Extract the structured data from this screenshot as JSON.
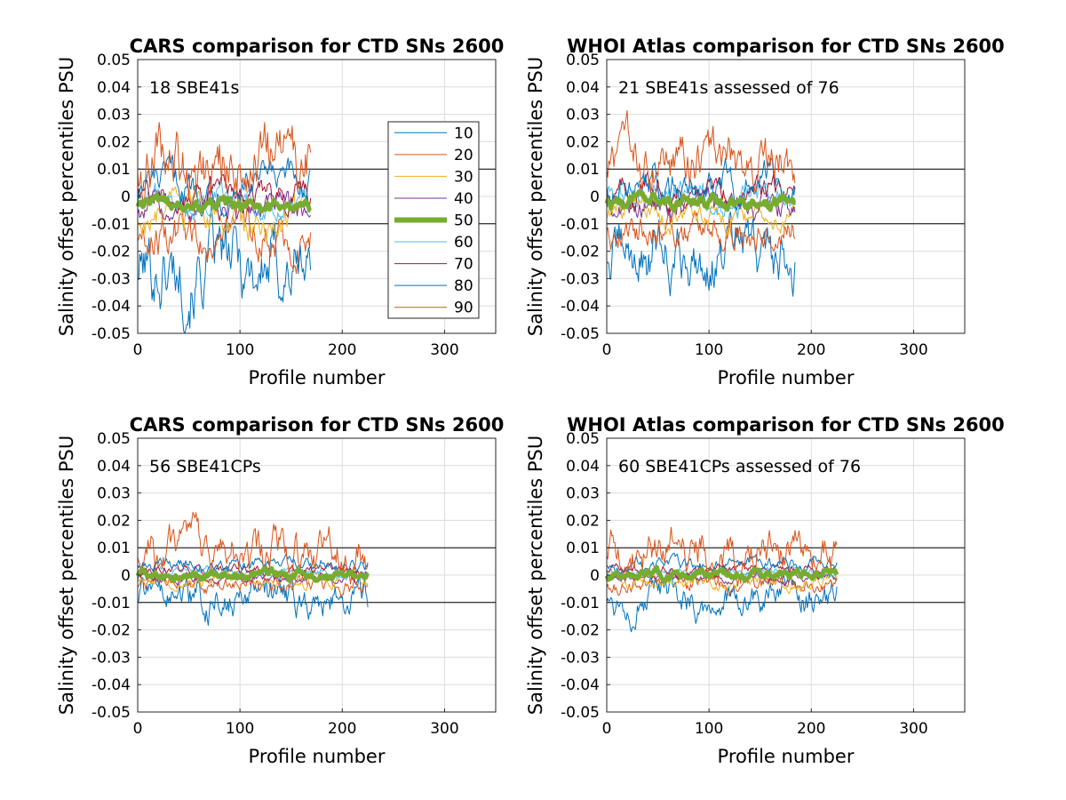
{
  "chart_data": [
    {
      "type": "line",
      "title": "CARS comparison for CTD SNs 2600",
      "xlabel": "Profile number",
      "ylabel": "Salinity offset percentiles PSU",
      "annotation": "18 SBE41s",
      "xlim": [
        0,
        350
      ],
      "ylim": [
        -0.05,
        0.05
      ],
      "xticks": [
        "0",
        "100",
        "200",
        "300"
      ],
      "yticks": [
        "-0.05",
        "-0.04",
        "-0.03",
        "-0.02",
        "-0.01",
        "0",
        "0.01",
        "0.02",
        "0.03",
        "0.04",
        "0.05"
      ],
      "reference_lines": [
        0.01,
        -0.01
      ],
      "grid": true,
      "legend": {
        "placement": "top-right",
        "entries": [
          "10",
          "20",
          "30",
          "40",
          "50",
          "60",
          "70",
          "80",
          "90"
        ]
      },
      "n_profiles": 170,
      "series": [
        {
          "name": "10",
          "color": "#0072BD",
          "level": -0.026,
          "noise": 0.009,
          "seed": 101
        },
        {
          "name": "20",
          "color": "#D95319",
          "level": -0.014,
          "noise": 0.005,
          "seed": 102
        },
        {
          "name": "30",
          "color": "#EDB120",
          "level": -0.009,
          "noise": 0.004,
          "seed": 103
        },
        {
          "name": "40",
          "color": "#7E2F8E",
          "level": -0.005,
          "noise": 0.003,
          "seed": 104
        },
        {
          "name": "50",
          "color": "#77AC30",
          "level": -0.003,
          "noise": 0.0015,
          "seed": 105
        },
        {
          "name": "60",
          "color": "#4DBEEE",
          "level": -0.001,
          "noise": 0.003,
          "seed": 106
        },
        {
          "name": "70",
          "color": "#A2142F",
          "level": 0.001,
          "noise": 0.003,
          "seed": 107
        },
        {
          "name": "80",
          "color": "#0072BD",
          "level": 0.004,
          "noise": 0.004,
          "seed": 108
        },
        {
          "name": "90",
          "color": "#D95319",
          "level": 0.012,
          "noise": 0.008,
          "seed": 109
        }
      ]
    },
    {
      "type": "line",
      "title": "WHOI Atlas comparison for CTD SNs 2600",
      "xlabel": "Profile number",
      "ylabel": "Salinity offset percentiles PSU",
      "annotation": "21 SBE41s assessed of 76",
      "xlim": [
        0,
        350
      ],
      "ylim": [
        -0.05,
        0.05
      ],
      "xticks": [
        "0",
        "100",
        "200",
        "300"
      ],
      "yticks": [
        "-0.05",
        "-0.04",
        "-0.03",
        "-0.02",
        "-0.01",
        "0",
        "0.01",
        "0.02",
        "0.03",
        "0.04",
        "0.05"
      ],
      "reference_lines": [
        0.01,
        -0.01
      ],
      "grid": true,
      "n_profiles": 185,
      "series": [
        {
          "name": "10",
          "color": "#0072BD",
          "level": -0.022,
          "noise": 0.007,
          "seed": 201
        },
        {
          "name": "20",
          "color": "#D95319",
          "level": -0.011,
          "noise": 0.004,
          "seed": 202
        },
        {
          "name": "30",
          "color": "#EDB120",
          "level": -0.007,
          "noise": 0.003,
          "seed": 203
        },
        {
          "name": "40",
          "color": "#7E2F8E",
          "level": -0.003,
          "noise": 0.003,
          "seed": 204
        },
        {
          "name": "50",
          "color": "#77AC30",
          "level": -0.002,
          "noise": 0.0015,
          "seed": 205
        },
        {
          "name": "60",
          "color": "#4DBEEE",
          "level": 0.0,
          "noise": 0.003,
          "seed": 206
        },
        {
          "name": "70",
          "color": "#A2142F",
          "level": 0.002,
          "noise": 0.003,
          "seed": 207
        },
        {
          "name": "80",
          "color": "#0072BD",
          "level": 0.005,
          "noise": 0.004,
          "seed": 208
        },
        {
          "name": "90",
          "color": "#D95319",
          "level": 0.012,
          "noise": 0.006,
          "seed": 209
        }
      ]
    },
    {
      "type": "line",
      "title": "CARS comparison for CTD SNs 2600",
      "xlabel": "Profile number",
      "ylabel": "Salinity offset percentiles PSU",
      "annotation": "56 SBE41CPs",
      "xlim": [
        0,
        350
      ],
      "ylim": [
        -0.05,
        0.05
      ],
      "xticks": [
        "0",
        "100",
        "200",
        "300"
      ],
      "yticks": [
        "-0.05",
        "-0.04",
        "-0.03",
        "-0.02",
        "-0.01",
        "0",
        "0.01",
        "0.02",
        "0.03",
        "0.04",
        "0.05"
      ],
      "reference_lines": [
        0.01,
        -0.01
      ],
      "grid": true,
      "n_profiles": 226,
      "series": [
        {
          "name": "10",
          "color": "#0072BD",
          "level": -0.009,
          "noise": 0.004,
          "seed": 301
        },
        {
          "name": "20",
          "color": "#D95319",
          "level": -0.004,
          "noise": 0.002,
          "seed": 302
        },
        {
          "name": "30",
          "color": "#EDB120",
          "level": -0.002,
          "noise": 0.0015,
          "seed": 303
        },
        {
          "name": "40",
          "color": "#7E2F8E",
          "level": -0.001,
          "noise": 0.001,
          "seed": 304
        },
        {
          "name": "50",
          "color": "#77AC30",
          "level": 0.0,
          "noise": 0.001,
          "seed": 305
        },
        {
          "name": "60",
          "color": "#4DBEEE",
          "level": 0.001,
          "noise": 0.001,
          "seed": 306
        },
        {
          "name": "70",
          "color": "#A2142F",
          "level": 0.002,
          "noise": 0.0012,
          "seed": 307
        },
        {
          "name": "80",
          "color": "#0072BD",
          "level": 0.004,
          "noise": 0.0015,
          "seed": 308
        },
        {
          "name": "90",
          "color": "#D95319",
          "level": 0.008,
          "noise": 0.005,
          "seed": 309
        }
      ]
    },
    {
      "type": "line",
      "title": "WHOI Atlas comparison for CTD SNs 2600",
      "xlabel": "Profile number",
      "ylabel": "Salinity offset percentiles PSU",
      "annotation": "60 SBE41CPs assessed of 76",
      "xlim": [
        0,
        350
      ],
      "ylim": [
        -0.05,
        0.05
      ],
      "xticks": [
        "0",
        "100",
        "200",
        "300"
      ],
      "yticks": [
        "-0.05",
        "-0.04",
        "-0.03",
        "-0.02",
        "-0.01",
        "0",
        "0.01",
        "0.02",
        "0.03",
        "0.04",
        "0.05"
      ],
      "reference_lines": [
        0.01,
        -0.01
      ],
      "grid": true,
      "n_profiles": 226,
      "series": [
        {
          "name": "10",
          "color": "#0072BD",
          "level": -0.009,
          "noise": 0.004,
          "seed": 401
        },
        {
          "name": "20",
          "color": "#D95319",
          "level": -0.004,
          "noise": 0.002,
          "seed": 402
        },
        {
          "name": "30",
          "color": "#EDB120",
          "level": -0.002,
          "noise": 0.0015,
          "seed": 403
        },
        {
          "name": "40",
          "color": "#7E2F8E",
          "level": -0.001,
          "noise": 0.001,
          "seed": 404
        },
        {
          "name": "50",
          "color": "#77AC30",
          "level": 0.0,
          "noise": 0.001,
          "seed": 405
        },
        {
          "name": "60",
          "color": "#4DBEEE",
          "level": 0.001,
          "noise": 0.001,
          "seed": 406
        },
        {
          "name": "70",
          "color": "#A2142F",
          "level": 0.002,
          "noise": 0.0012,
          "seed": 407
        },
        {
          "name": "80",
          "color": "#0072BD",
          "level": 0.004,
          "noise": 0.0015,
          "seed": 408
        },
        {
          "name": "90",
          "color": "#D95319",
          "level": 0.008,
          "noise": 0.005,
          "seed": 409
        }
      ]
    }
  ]
}
